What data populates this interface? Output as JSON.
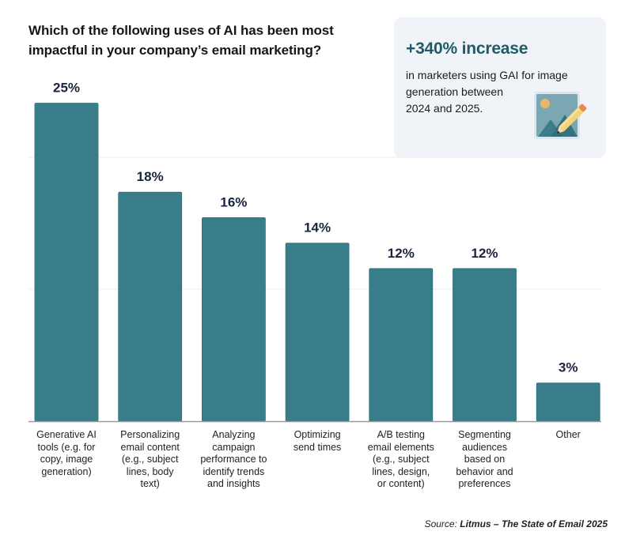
{
  "title_lines": [
    "Which of the following uses of AI has been most",
    "impactful in your company’s email marketing?"
  ],
  "callout": {
    "headline": "+340% increase",
    "body_lines": [
      "in marketers using GAI for image",
      "generation between",
      "2024 and 2025."
    ],
    "icon": "image-edit-icon"
  },
  "source": {
    "prefix": "Source: ",
    "name": "Litmus – The State of Email 2025"
  },
  "colors": {
    "bar": "#3a7d8a",
    "value_label": "#1a2340",
    "headline": "#1e5b69",
    "callout_bg": "#f0f3f8"
  },
  "chart_data": {
    "type": "bar",
    "title": "Which of the following uses of AI has been most impactful in your company’s email marketing?",
    "xlabel": "",
    "ylabel": "",
    "ylim": [
      0,
      30
    ],
    "grid": true,
    "gridlines": [
      10,
      20
    ],
    "categories": [
      "Generative AI tools (e.g. for copy, image generation)",
      "Personalizing email content (e.g., subject lines, body text)",
      "Analyzing campaign performance to identify trends and insights",
      "Optimizing send times",
      "A/B testing email elements (e.g., subject lines, design, or content)",
      "Segmenting audiences based on behavior and preferences",
      "Other"
    ],
    "category_lines": [
      [
        "Generative AI",
        "tools (e.g. for",
        "copy, image",
        "generation)"
      ],
      [
        "Personalizing",
        "email content",
        "(e.g., subject",
        "lines, body",
        "text)"
      ],
      [
        "Analyzing",
        "campaign",
        "performance to",
        "identify trends",
        "and insights"
      ],
      [
        "Optimizing",
        "send times"
      ],
      [
        "A/B testing",
        "email elements",
        "(e.g., subject",
        "lines, design,",
        "or content)"
      ],
      [
        "Segmenting",
        "audiences",
        "based on",
        "behavior and",
        "preferences"
      ],
      [
        "Other"
      ]
    ],
    "values": [
      25,
      18,
      16,
      14,
      12,
      12,
      3
    ],
    "value_labels": [
      "25%",
      "18%",
      "16%",
      "14%",
      "12%",
      "12%",
      "3%"
    ],
    "unit": "%"
  }
}
